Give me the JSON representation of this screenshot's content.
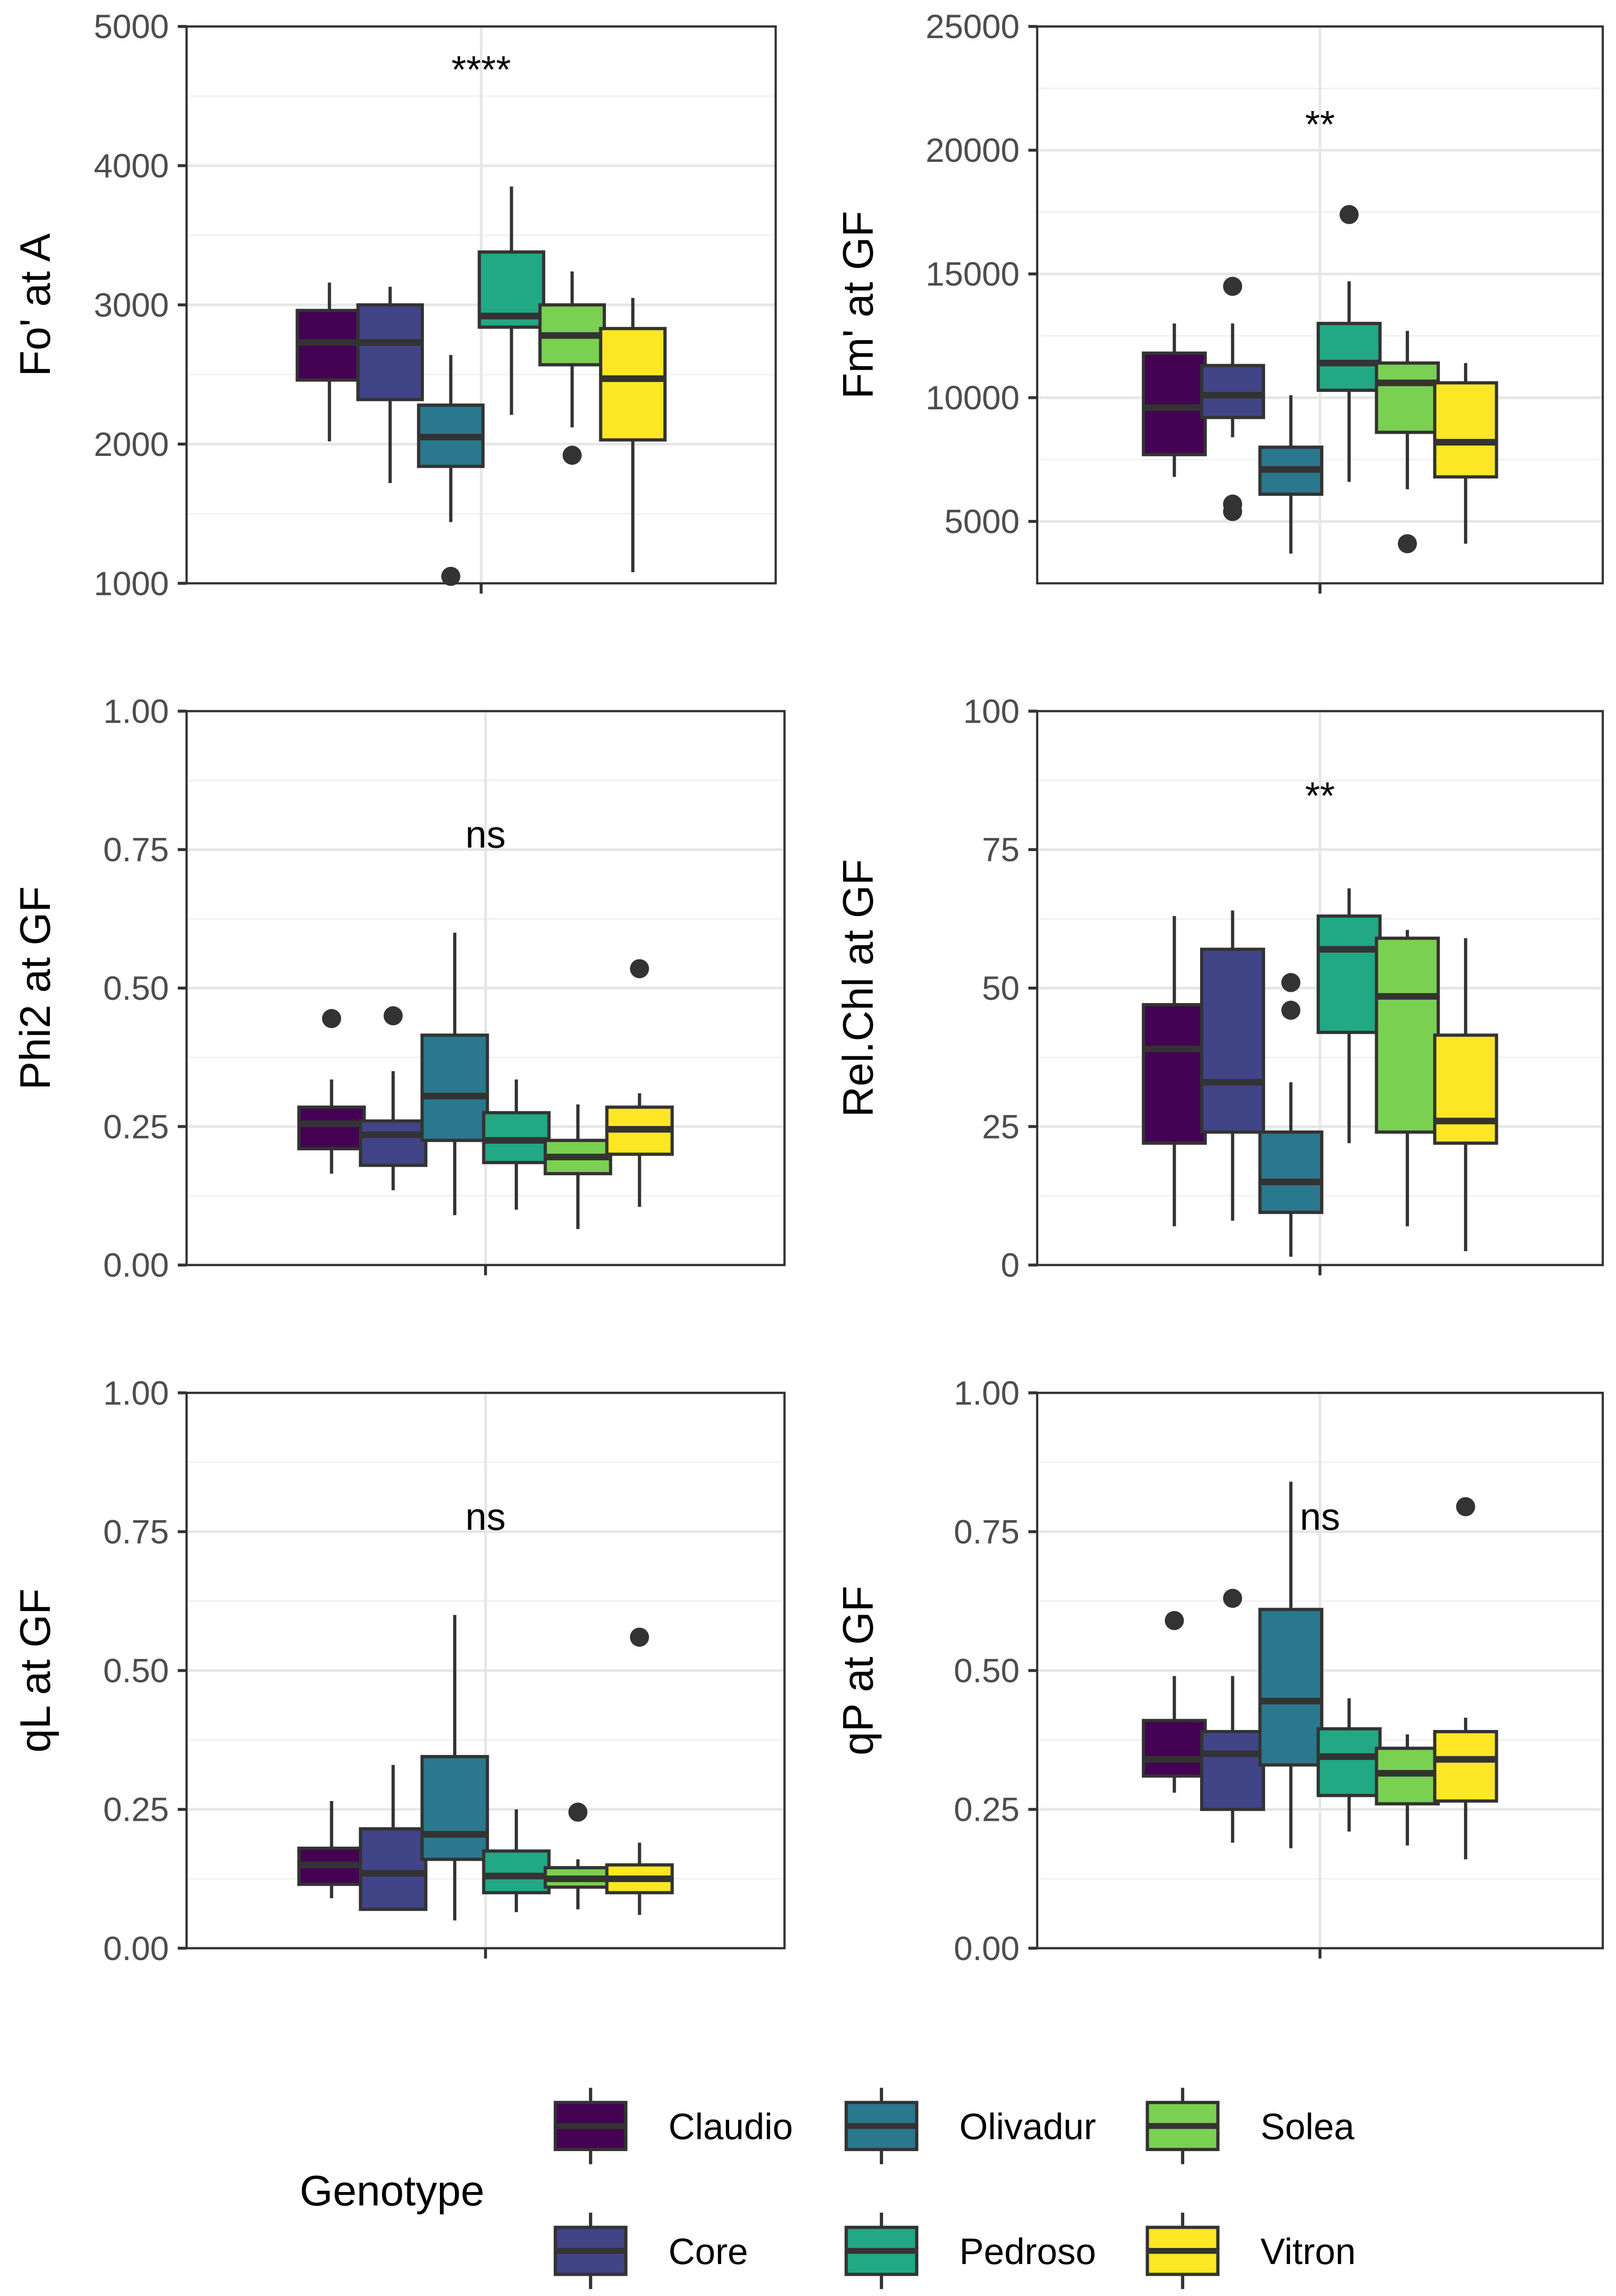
{
  "chart_data": [
    {
      "type": "box",
      "ylabel": "Fo' at A",
      "ylim": [
        1000,
        5000
      ],
      "yticks": [
        1000,
        2000,
        3000,
        4000,
        5000
      ],
      "tick_labels": [
        "1000",
        "2000",
        "3000",
        "4000",
        "5000"
      ],
      "annotation": "****",
      "annotation_y": 4700,
      "boxes": [
        [
          2020,
          2460,
          2730,
          2960,
          3160,
          []
        ],
        [
          1720,
          2320,
          2730,
          3000,
          3130,
          []
        ],
        [
          1440,
          1840,
          2050,
          2280,
          2640,
          [
            1050
          ]
        ],
        [
          2210,
          2840,
          2920,
          3380,
          3850,
          []
        ],
        [
          2120,
          2570,
          2780,
          3000,
          3240,
          [
            1920
          ]
        ],
        [
          1080,
          2030,
          2470,
          2830,
          3050,
          []
        ]
      ]
    },
    {
      "type": "box",
      "ylabel": "Fm' at GF",
      "ylim": [
        2500,
        25000
      ],
      "yticks": [
        5000,
        10000,
        15000,
        20000,
        25000
      ],
      "tick_labels": [
        "5000",
        "10000",
        "15000",
        "20000",
        "25000"
      ],
      "annotation": "**",
      "annotation_y": 21100,
      "boxes": [
        [
          6800,
          7700,
          9600,
          11800,
          13000,
          []
        ],
        [
          8400,
          9200,
          10100,
          11300,
          13000,
          [
            14500,
            5700,
            5400
          ]
        ],
        [
          3700,
          6100,
          7100,
          8000,
          10100,
          []
        ],
        [
          6600,
          10300,
          11400,
          13000,
          14700,
          [
            17400
          ]
        ],
        [
          6300,
          8600,
          10600,
          11400,
          12700,
          [
            4100
          ]
        ],
        [
          4100,
          6800,
          8200,
          10600,
          11400,
          []
        ]
      ]
    },
    {
      "type": "box",
      "ylabel": "Phi2 at GF",
      "ylim": [
        0,
        1
      ],
      "yticks": [
        0,
        0.25,
        0.5,
        0.75,
        1
      ],
      "tick_labels": [
        "0.00",
        "0.25",
        "0.50",
        "0.75",
        "1.00"
      ],
      "annotation": "ns",
      "annotation_y": 0.78,
      "boxes": [
        [
          0.165,
          0.21,
          0.255,
          0.285,
          0.335,
          [
            0.445
          ]
        ],
        [
          0.135,
          0.18,
          0.235,
          0.26,
          0.35,
          [
            0.45
          ]
        ],
        [
          0.09,
          0.225,
          0.305,
          0.415,
          0.6,
          []
        ],
        [
          0.1,
          0.185,
          0.225,
          0.275,
          0.335,
          []
        ],
        [
          0.065,
          0.165,
          0.195,
          0.225,
          0.29,
          []
        ],
        [
          0.105,
          0.2,
          0.245,
          0.285,
          0.31,
          [
            0.535
          ]
        ]
      ]
    },
    {
      "type": "box",
      "ylabel": "Rel.Chl at GF",
      "ylim": [
        0,
        100
      ],
      "yticks": [
        0,
        25,
        50,
        75,
        100
      ],
      "tick_labels": [
        "0",
        "25",
        "50",
        "75",
        "100"
      ],
      "annotation": "**",
      "annotation_y": 85,
      "boxes": [
        [
          7,
          22,
          39,
          47,
          63,
          []
        ],
        [
          8,
          24,
          33,
          57,
          64,
          []
        ],
        [
          1.5,
          9.5,
          15,
          24,
          33,
          [
            46,
            51
          ]
        ],
        [
          22,
          42,
          57,
          63,
          68,
          []
        ],
        [
          7,
          24,
          48.5,
          59,
          60.5,
          []
        ],
        [
          2.5,
          22,
          26,
          41.5,
          59,
          []
        ]
      ]
    },
    {
      "type": "box",
      "ylabel": "qL at GF",
      "ylim": [
        0,
        1
      ],
      "yticks": [
        0,
        0.25,
        0.5,
        0.75,
        1
      ],
      "tick_labels": [
        "0.00",
        "0.25",
        "0.50",
        "0.75",
        "1.00"
      ],
      "annotation": "ns",
      "annotation_y": 0.78,
      "boxes": [
        [
          0.09,
          0.115,
          0.15,
          0.18,
          0.265,
          []
        ],
        [
          0.07,
          0.07,
          0.135,
          0.215,
          0.33,
          []
        ],
        [
          0.05,
          0.16,
          0.205,
          0.345,
          0.6,
          []
        ],
        [
          0.065,
          0.1,
          0.13,
          0.175,
          0.25,
          []
        ],
        [
          0.07,
          0.11,
          0.125,
          0.145,
          0.16,
          [
            0.245
          ]
        ],
        [
          0.06,
          0.1,
          0.125,
          0.15,
          0.19,
          [
            0.56
          ]
        ]
      ]
    },
    {
      "type": "box",
      "ylabel": "qP at GF",
      "ylim": [
        0,
        1
      ],
      "yticks": [
        0,
        0.25,
        0.5,
        0.75,
        1
      ],
      "tick_labels": [
        "0.00",
        "0.25",
        "0.50",
        "0.75",
        "1.00"
      ],
      "annotation": "ns",
      "annotation_y": 0.78,
      "boxes": [
        [
          0.28,
          0.31,
          0.34,
          0.41,
          0.49,
          [
            0.59
          ]
        ],
        [
          0.19,
          0.25,
          0.35,
          0.39,
          0.49,
          [
            0.63
          ]
        ],
        [
          0.18,
          0.33,
          0.445,
          0.61,
          0.84,
          []
        ],
        [
          0.21,
          0.275,
          0.345,
          0.395,
          0.45,
          []
        ],
        [
          0.185,
          0.26,
          0.315,
          0.36,
          0.385,
          []
        ],
        [
          0.16,
          0.265,
          0.34,
          0.39,
          0.415,
          [
            0.795
          ]
        ]
      ]
    }
  ],
  "legend": {
    "title": "Genotype",
    "items": [
      {
        "label": "Claudio",
        "color": "#440154"
      },
      {
        "label": "Core",
        "color": "#414487"
      },
      {
        "label": "Olivadur",
        "color": "#2A788E"
      },
      {
        "label": "Pedroso",
        "color": "#22A884"
      },
      {
        "label": "Solea",
        "color": "#7AD151"
      },
      {
        "label": "Vitron",
        "color": "#FDE725"
      }
    ]
  }
}
